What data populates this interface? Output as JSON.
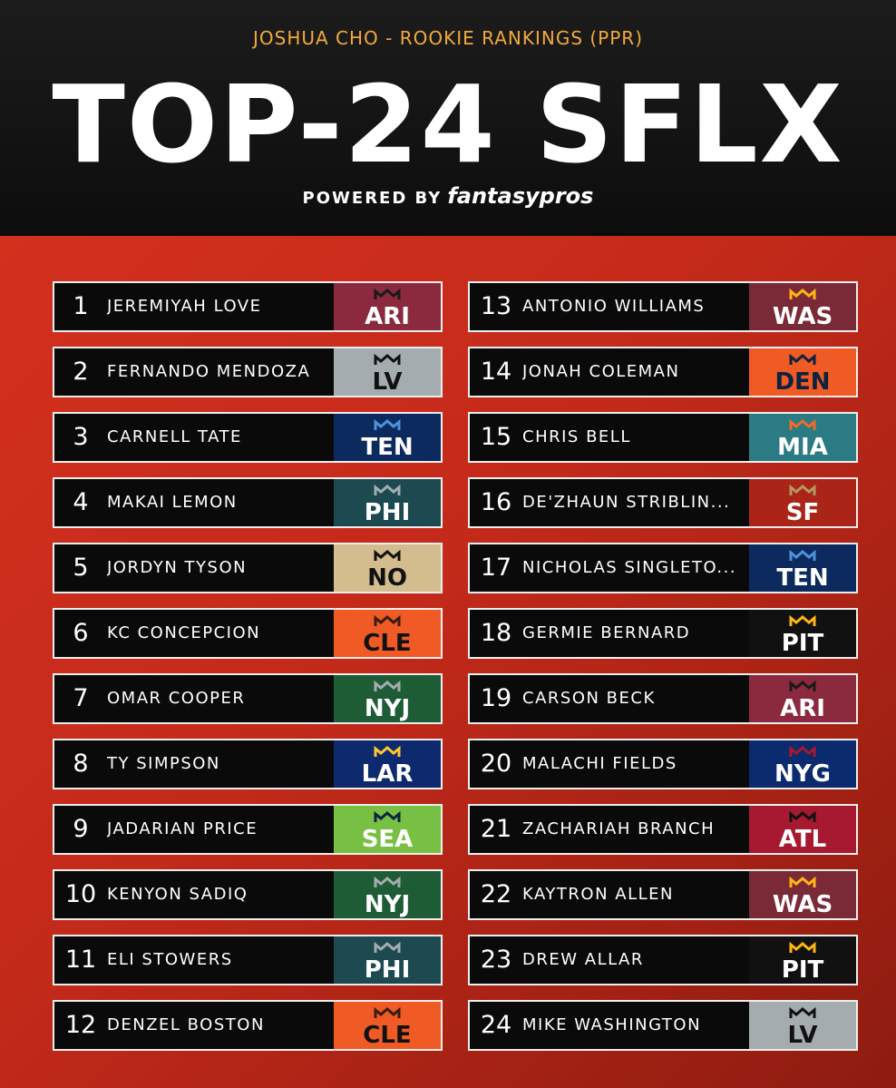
{
  "header": {
    "subtitle": "JOSHUA CHO - ROOKIE RANKINGS (PPR)",
    "title": "TOP-24 SFLX",
    "powered_by": "POWERED BY",
    "brand": "fantasypros"
  },
  "rankings": [
    {
      "rank": 1,
      "name": "JEREMIYAH LOVE",
      "team": "ARI",
      "color": "#8b2a3e",
      "text_color": "#ffffff",
      "accent": "#1a1a1a"
    },
    {
      "rank": 2,
      "name": "FERNANDO MENDOZA",
      "team": "LV",
      "color": "#a5acaf",
      "text_color": "#111111",
      "accent": "#111111"
    },
    {
      "rank": 3,
      "name": "CARNELL TATE",
      "team": "TEN",
      "color": "#0c2a5e",
      "text_color": "#ffffff",
      "accent": "#4b92db"
    },
    {
      "rank": 4,
      "name": "MAKAI LEMON",
      "team": "PHI",
      "color": "#1c4a50",
      "text_color": "#ffffff",
      "accent": "#a5acaf"
    },
    {
      "rank": 5,
      "name": "JORDYN TYSON",
      "team": "NO",
      "color": "#d3bc8d",
      "text_color": "#111111",
      "accent": "#111111"
    },
    {
      "rank": 6,
      "name": "KC CONCEPCION",
      "team": "CLE",
      "color": "#f05a24",
      "text_color": "#111111",
      "accent": "#3a1c10"
    },
    {
      "rank": 7,
      "name": "OMAR COOPER",
      "team": "NYJ",
      "color": "#1e5c36",
      "text_color": "#ffffff",
      "accent": "#a5acaf"
    },
    {
      "rank": 8,
      "name": "TY SIMPSON",
      "team": "LAR",
      "color": "#0d2a6e",
      "text_color": "#ffffff",
      "accent": "#ffc72c"
    },
    {
      "rank": 9,
      "name": "JADARIAN PRICE",
      "team": "SEA",
      "color": "#78c044",
      "text_color": "#ffffff",
      "accent": "#0c2340"
    },
    {
      "rank": 10,
      "name": "KENYON SADIQ",
      "team": "NYJ",
      "color": "#1e5c36",
      "text_color": "#ffffff",
      "accent": "#a5acaf"
    },
    {
      "rank": 11,
      "name": "ELI STOWERS",
      "team": "PHI",
      "color": "#1c4a50",
      "text_color": "#ffffff",
      "accent": "#a5acaf"
    },
    {
      "rank": 12,
      "name": "DENZEL BOSTON",
      "team": "CLE",
      "color": "#f05a24",
      "text_color": "#111111",
      "accent": "#3a1c10"
    },
    {
      "rank": 13,
      "name": "ANTONIO WILLIAMS",
      "team": "WAS",
      "color": "#7a2a36",
      "text_color": "#ffffff",
      "accent": "#ffb612"
    },
    {
      "rank": 14,
      "name": "JONAH COLEMAN",
      "team": "DEN",
      "color": "#f05a24",
      "text_color": "#0c2340",
      "accent": "#0c2340"
    },
    {
      "rank": 15,
      "name": "CHRIS BELL",
      "team": "MIA",
      "color": "#2a7b84",
      "text_color": "#ffffff",
      "accent": "#f26a24"
    },
    {
      "rank": 16,
      "name": "DE'ZHAUN STRIBLIN...",
      "team": "SF",
      "color": "#aa2418",
      "text_color": "#ffffff",
      "accent": "#b3995d"
    },
    {
      "rank": 17,
      "name": "NICHOLAS SINGLETO...",
      "team": "TEN",
      "color": "#0c2a5e",
      "text_color": "#ffffff",
      "accent": "#4b92db"
    },
    {
      "rank": 18,
      "name": "GERMIE BERNARD",
      "team": "PIT",
      "color": "#111111",
      "text_color": "#ffffff",
      "accent": "#ffb612"
    },
    {
      "rank": 19,
      "name": "CARSON BECK",
      "team": "ARI",
      "color": "#8b2a3e",
      "text_color": "#ffffff",
      "accent": "#1a1a1a"
    },
    {
      "rank": 20,
      "name": "MALACHI FIELDS",
      "team": "NYG",
      "color": "#0c2a6e",
      "text_color": "#ffffff",
      "accent": "#a71930"
    },
    {
      "rank": 21,
      "name": "ZACHARIAH BRANCH",
      "team": "ATL",
      "color": "#a71930",
      "text_color": "#ffffff",
      "accent": "#111111"
    },
    {
      "rank": 22,
      "name": "KAYTRON ALLEN",
      "team": "WAS",
      "color": "#7a2a36",
      "text_color": "#ffffff",
      "accent": "#ffb612"
    },
    {
      "rank": 23,
      "name": "DREW ALLAR",
      "team": "PIT",
      "color": "#111111",
      "text_color": "#ffffff",
      "accent": "#ffb612"
    },
    {
      "rank": 24,
      "name": "MIKE WASHINGTON",
      "team": "LV",
      "color": "#a5acaf",
      "text_color": "#111111",
      "accent": "#111111"
    }
  ]
}
